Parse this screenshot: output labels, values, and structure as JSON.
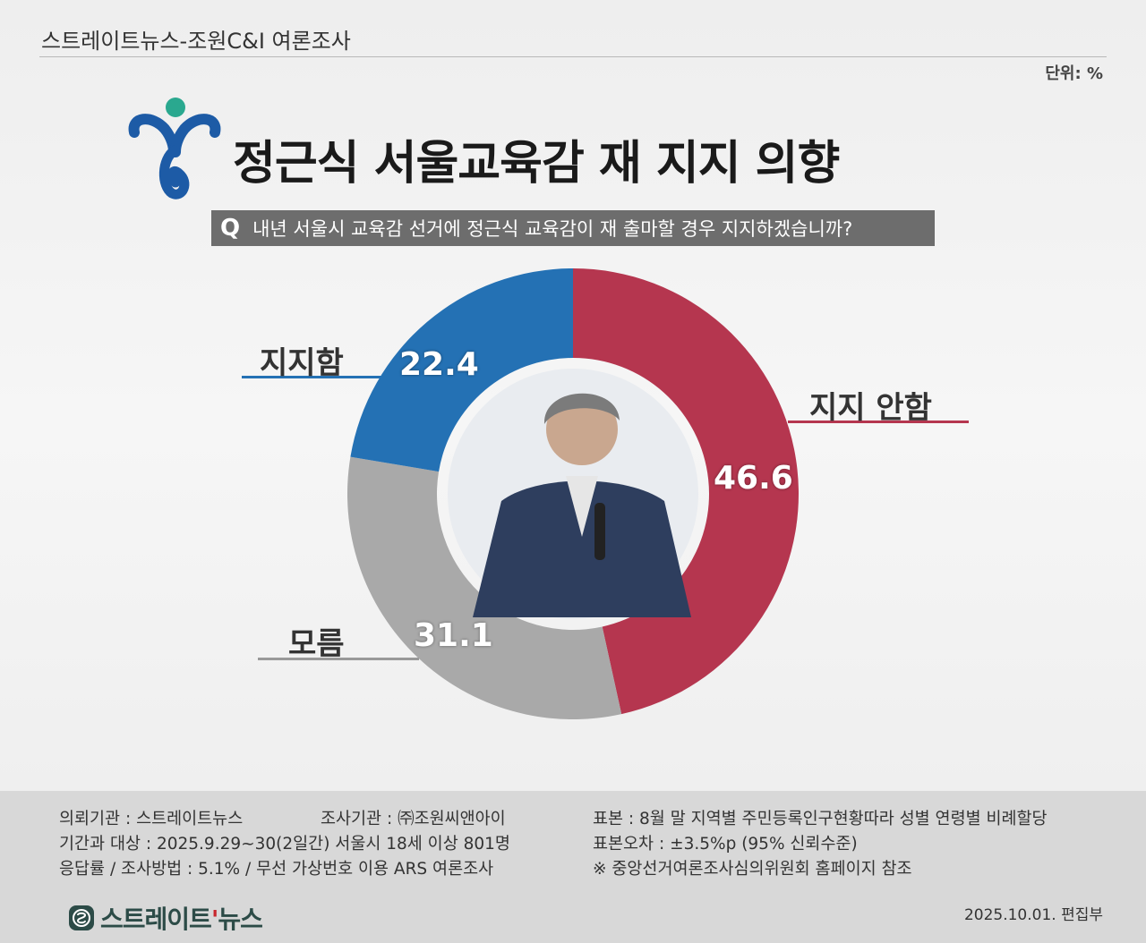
{
  "header": {
    "source_title": "스트레이트뉴스-조원C&I 여론조사",
    "unit": "단위: %"
  },
  "title": "정근식 서울교육감 재 지지 의향",
  "question": {
    "badge": "Q",
    "text": "내년 서울시 교육감 선거에 정근식 교육감이 재 출마할 경우 지지하겠습니까?"
  },
  "chart_data": {
    "type": "pie",
    "unit": "%",
    "categories": [
      "지지 안함",
      "모름",
      "지지함"
    ],
    "values": [
      46.6,
      31.1,
      22.4
    ],
    "value_labels": [
      "46.6",
      "31.1",
      "22.4"
    ],
    "colors": [
      "#b5364f",
      "#a9a9a9",
      "#2471b4"
    ]
  },
  "footer": {
    "client": "의뢰기관 : 스트레이트뉴스",
    "agency": "조사기관 : ㈜조원씨앤아이",
    "sample": "표본 : 8월 말 지역별 주민등록인구현황따라 성별 연령별 비례할당",
    "period": "기간과 대상 : 2025.9.29~30(2일간) 서울시  18세 이상 801명",
    "error": "표본오차 : ±3.5%p (95% 신뢰수준)",
    "method": "응답률 / 조사방법 : 5.1% / 무선 가상번호 이용 ARS 여론조사",
    "note": "※ 중앙선거여론조사심의위원회 홈페이지 참조",
    "brand_main": "스트레이트",
    "brand_accent": "'",
    "brand_tail": "뉴스",
    "date": "2025.10.01. 편집부"
  }
}
